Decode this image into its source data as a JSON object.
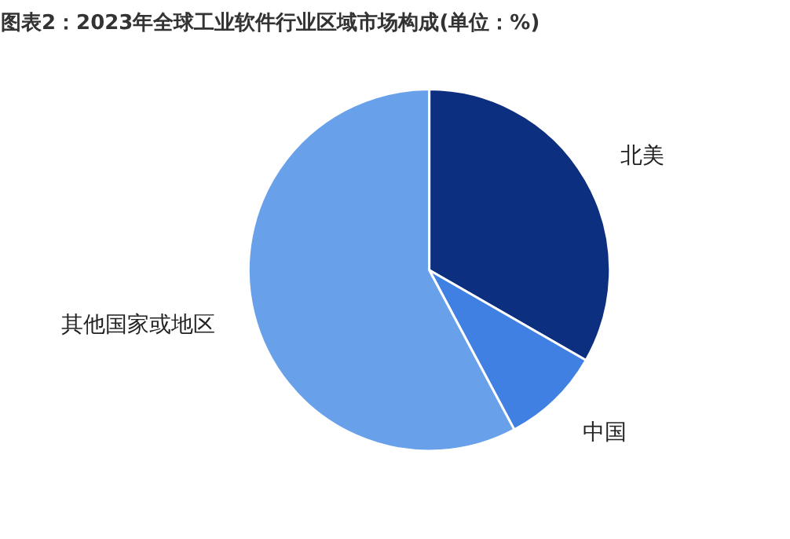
{
  "chart_data": {
    "type": "pie",
    "title": "图表2：2023年全球工业软件行业区域市场构成(单位：%)",
    "categories": [
      "北美",
      "中国",
      "其他国家或地区"
    ],
    "values": [
      33.3,
      8.9,
      57.8
    ],
    "colors": [
      "#0d2f80",
      "#3f80e2",
      "#68a0ea"
    ]
  }
}
